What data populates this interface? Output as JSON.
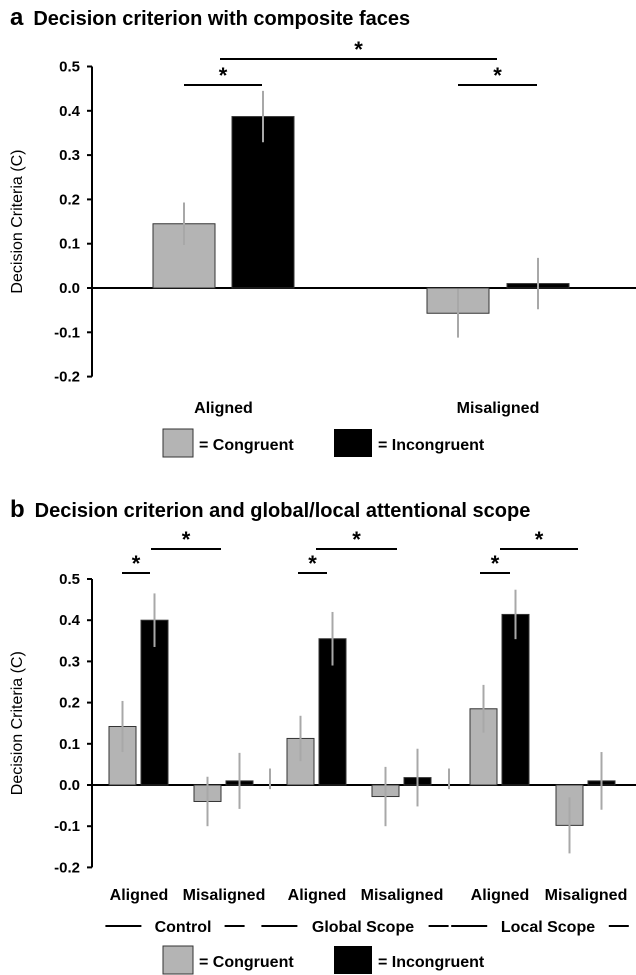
{
  "panels": [
    {
      "letter": "a",
      "title": "Decision criterion with composite faces",
      "ylabel": "Decision Criteria (C)",
      "legend": {
        "congruent": "= Congruent",
        "incongruent": "= Incongruent"
      }
    },
    {
      "letter": "b",
      "title": "Decision criterion and global/local attentional scope",
      "ylabel": "Decision Criteria (C)",
      "legend": {
        "congruent": "= Congruent",
        "incongruent": "= Incongruent"
      }
    }
  ],
  "colors": {
    "congruent": "#b4b4b4",
    "incongruent": "#000000",
    "error": "#a8a8a8"
  },
  "chart_data": [
    {
      "type": "bar",
      "title": "Decision criterion with composite faces",
      "ylabel": "Decision Criteria (C)",
      "xlabel": "",
      "categories": [
        "Aligned",
        "Misaligned"
      ],
      "series": [
        {
          "name": "Congruent",
          "values": [
            0.145,
            -0.057
          ],
          "error": [
            0.048,
            0.055
          ]
        },
        {
          "name": "Incongruent",
          "values": [
            0.387,
            0.01
          ],
          "error": [
            0.058,
            0.058
          ]
        }
      ],
      "ylim": [
        -0.2,
        0.5
      ],
      "yticks": [
        "0.5",
        "0.4",
        "0.3",
        "0.2",
        "0.1",
        "0.0",
        "-0.1",
        "-0.2"
      ],
      "significance": [
        "*",
        "*",
        "*"
      ],
      "legend_position": "bottom",
      "grid": false
    },
    {
      "type": "bar",
      "title": "Decision criterion and global/local attentional scope",
      "ylabel": "Decision Criteria (C)",
      "xlabel": "",
      "groups": [
        "Control",
        "Global Scope",
        "Local Scope"
      ],
      "categories": [
        "Aligned",
        "Misaligned",
        "Aligned",
        "Misaligned",
        "Aligned",
        "Misaligned"
      ],
      "series": [
        {
          "name": "Congruent",
          "values": [
            0.142,
            -0.04,
            0.113,
            -0.028,
            0.185,
            -0.098
          ],
          "error": [
            0.062,
            0.06,
            0.055,
            0.072,
            0.058,
            0.068
          ]
        },
        {
          "name": "Incongruent",
          "values": [
            0.4,
            0.01,
            0.355,
            0.018,
            0.414,
            0.01
          ],
          "error": [
            0.065,
            0.068,
            0.065,
            0.07,
            0.06,
            0.07
          ]
        }
      ],
      "ylim": [
        -0.2,
        0.5
      ],
      "yticks": [
        "0.5",
        "0.4",
        "0.3",
        "0.2",
        "0.1",
        "0.0",
        "-0.1",
        "-0.2"
      ],
      "significance": [
        "*",
        "*",
        "*",
        "*",
        "*",
        "*"
      ],
      "legend_position": "bottom",
      "grid": false
    }
  ]
}
